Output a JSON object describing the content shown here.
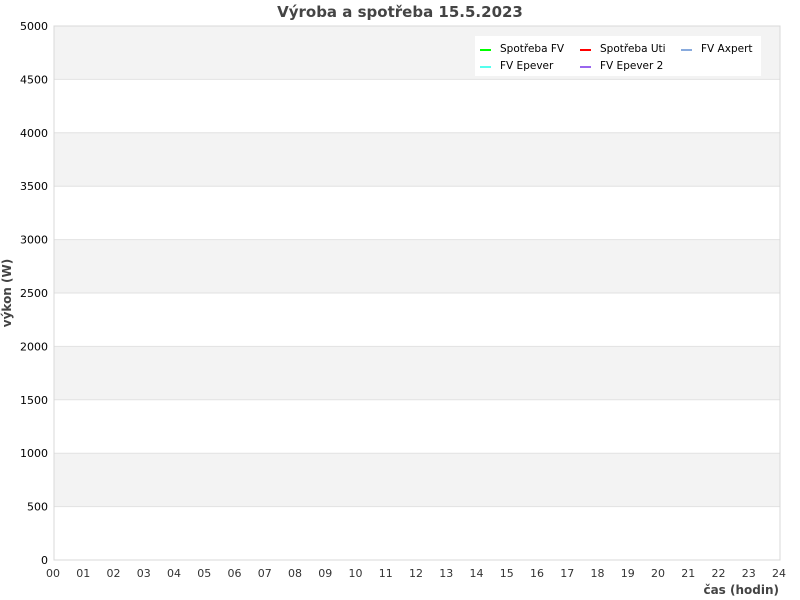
{
  "chart_data": {
    "type": "line",
    "title": "Výroba a spotřeba 15.5.2023",
    "xlabel": "čas (hodin)",
    "ylabel": "výkon (W)",
    "xlim": [
      0,
      24
    ],
    "ylim": [
      0,
      5000
    ],
    "x_ticks": [
      "00",
      "01",
      "02",
      "03",
      "04",
      "05",
      "06",
      "07",
      "08",
      "09",
      "10",
      "11",
      "12",
      "13",
      "14",
      "15",
      "16",
      "17",
      "18",
      "19",
      "20",
      "21",
      "22",
      "23",
      "24"
    ],
    "y_ticks": [
      0,
      500,
      1000,
      1500,
      2000,
      2500,
      3000,
      3500,
      4000,
      4500,
      5000
    ],
    "grid": true,
    "legend_position": "top-right",
    "series": [
      {
        "name": "Spotřeba FV",
        "color": "#00ff00",
        "values": []
      },
      {
        "name": "Spotřeba Uti",
        "color": "#ff0000",
        "values": []
      },
      {
        "name": "FV Axpert",
        "color": "#88aadd",
        "values": []
      },
      {
        "name": "FV Epever",
        "color": "#55ffee",
        "values": []
      },
      {
        "name": "FV Epever 2",
        "color": "#9966ee",
        "values": []
      }
    ]
  }
}
